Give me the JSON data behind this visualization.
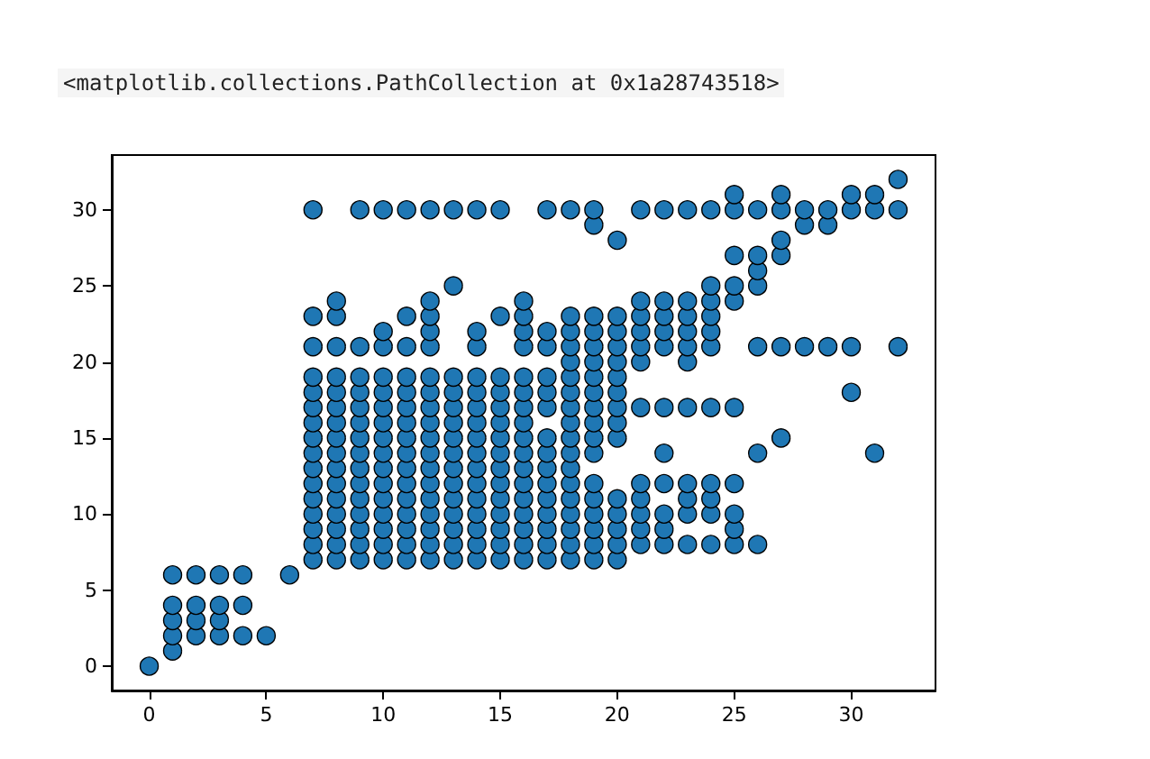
{
  "chart_data": {
    "type": "scatter",
    "annotations": [
      "<matplotlib.collections.PathCollection at 0x1a28743518>"
    ],
    "x": [
      0,
      1,
      1,
      1,
      1,
      1,
      2,
      2,
      2,
      2,
      3,
      3,
      3,
      3,
      4,
      4,
      4,
      5,
      6,
      7,
      7,
      7,
      7,
      7,
      7,
      7,
      7,
      7,
      7,
      7,
      7,
      7,
      7,
      7,
      7,
      8,
      8,
      8,
      8,
      8,
      8,
      8,
      8,
      8,
      8,
      8,
      8,
      8,
      8,
      8,
      8,
      9,
      9,
      9,
      9,
      9,
      9,
      9,
      9,
      9,
      9,
      9,
      9,
      9,
      9,
      9,
      10,
      10,
      10,
      10,
      10,
      10,
      10,
      10,
      10,
      10,
      10,
      10,
      10,
      10,
      10,
      10,
      11,
      11,
      11,
      11,
      11,
      11,
      11,
      11,
      11,
      11,
      11,
      11,
      11,
      11,
      11,
      11,
      12,
      12,
      12,
      12,
      12,
      12,
      12,
      12,
      12,
      12,
      12,
      12,
      12,
      12,
      12,
      12,
      12,
      12,
      13,
      13,
      13,
      13,
      13,
      13,
      13,
      13,
      13,
      13,
      13,
      13,
      13,
      13,
      13,
      14,
      14,
      14,
      14,
      14,
      14,
      14,
      14,
      14,
      14,
      14,
      14,
      14,
      14,
      14,
      14,
      15,
      15,
      15,
      15,
      15,
      15,
      15,
      15,
      15,
      15,
      15,
      15,
      15,
      15,
      15,
      16,
      16,
      16,
      16,
      16,
      16,
      16,
      16,
      16,
      16,
      16,
      16,
      16,
      16,
      16,
      16,
      16,
      17,
      17,
      17,
      17,
      17,
      17,
      17,
      17,
      17,
      17,
      17,
      17,
      17,
      17,
      17,
      18,
      18,
      18,
      18,
      18,
      18,
      18,
      18,
      18,
      18,
      18,
      18,
      18,
      18,
      18,
      18,
      18,
      18,
      19,
      19,
      19,
      19,
      19,
      19,
      19,
      19,
      19,
      19,
      19,
      19,
      19,
      19,
      19,
      19,
      19,
      19,
      20,
      20,
      20,
      20,
      20,
      20,
      20,
      20,
      20,
      20,
      20,
      20,
      20,
      20,
      20,
      21,
      21,
      21,
      21,
      21,
      21,
      21,
      21,
      21,
      21,
      21,
      21,
      22,
      22,
      22,
      22,
      22,
      22,
      22,
      22,
      22,
      22,
      22,
      23,
      23,
      23,
      23,
      23,
      23,
      23,
      23,
      23,
      23,
      23,
      24,
      24,
      24,
      24,
      24,
      24,
      24,
      24,
      24,
      24,
      24,
      25,
      25,
      25,
      25,
      25,
      25,
      25,
      25,
      25,
      25,
      26,
      26,
      26,
      26,
      26,
      26,
      26,
      27,
      27,
      27,
      27,
      27,
      27,
      28,
      28,
      28,
      29,
      29,
      29,
      30,
      30,
      30,
      30,
      31,
      31,
      31,
      32,
      32,
      32
    ],
    "values": [
      0,
      1,
      2,
      3,
      4,
      6,
      2,
      3,
      4,
      6,
      2,
      3,
      4,
      6,
      2,
      4,
      6,
      2,
      6,
      7,
      8,
      9,
      10,
      11,
      12,
      13,
      14,
      15,
      16,
      17,
      18,
      19,
      21,
      23,
      30,
      7,
      8,
      9,
      10,
      11,
      12,
      13,
      14,
      15,
      16,
      17,
      18,
      19,
      21,
      23,
      24,
      7,
      8,
      9,
      10,
      11,
      12,
      13,
      14,
      15,
      16,
      17,
      18,
      19,
      21,
      30,
      7,
      8,
      9,
      10,
      11,
      12,
      13,
      14,
      15,
      16,
      17,
      18,
      19,
      21,
      22,
      30,
      7,
      8,
      9,
      10,
      11,
      12,
      13,
      14,
      15,
      16,
      17,
      18,
      19,
      21,
      23,
      30,
      7,
      8,
      9,
      10,
      11,
      12,
      13,
      14,
      15,
      16,
      17,
      18,
      19,
      21,
      22,
      23,
      24,
      30,
      7,
      8,
      9,
      10,
      11,
      12,
      13,
      14,
      15,
      16,
      17,
      18,
      19,
      25,
      30,
      7,
      8,
      9,
      10,
      11,
      12,
      13,
      14,
      15,
      16,
      17,
      18,
      19,
      21,
      22,
      30,
      7,
      8,
      9,
      10,
      11,
      12,
      13,
      14,
      15,
      16,
      17,
      18,
      19,
      23,
      30,
      7,
      8,
      9,
      10,
      11,
      12,
      13,
      14,
      15,
      16,
      17,
      18,
      19,
      21,
      22,
      23,
      24,
      7,
      8,
      9,
      10,
      11,
      12,
      13,
      14,
      15,
      17,
      18,
      19,
      21,
      22,
      30,
      7,
      8,
      9,
      10,
      11,
      12,
      13,
      14,
      15,
      16,
      17,
      18,
      19,
      20,
      21,
      22,
      23,
      30,
      7,
      8,
      9,
      10,
      11,
      12,
      14,
      15,
      16,
      17,
      18,
      19,
      20,
      21,
      22,
      23,
      29,
      30,
      7,
      8,
      9,
      10,
      11,
      15,
      16,
      17,
      18,
      19,
      20,
      21,
      22,
      23,
      28,
      8,
      9,
      10,
      11,
      12,
      17,
      20,
      21,
      22,
      23,
      24,
      30,
      8,
      9,
      10,
      12,
      14,
      17,
      21,
      22,
      23,
      24,
      30,
      8,
      10,
      11,
      12,
      17,
      20,
      21,
      22,
      23,
      24,
      30,
      8,
      10,
      11,
      12,
      17,
      21,
      22,
      23,
      24,
      25,
      30,
      8,
      9,
      10,
      12,
      17,
      24,
      25,
      27,
      30,
      31,
      8,
      14,
      21,
      25,
      26,
      27,
      30,
      15,
      21,
      27,
      28,
      30,
      31,
      21,
      29,
      30,
      21,
      29,
      30,
      18,
      21,
      30,
      31,
      14,
      30,
      31,
      21,
      30,
      32
    ],
    "color": "#1f77b4",
    "marker": "circle",
    "xlim": [
      -1.6,
      33.6
    ],
    "ylim": [
      -1.6,
      33.6
    ],
    "xticks": [
      0,
      5,
      10,
      15,
      20,
      25,
      30
    ],
    "yticks": [
      0,
      5,
      10,
      15,
      20,
      25,
      30
    ],
    "grid": false
  }
}
